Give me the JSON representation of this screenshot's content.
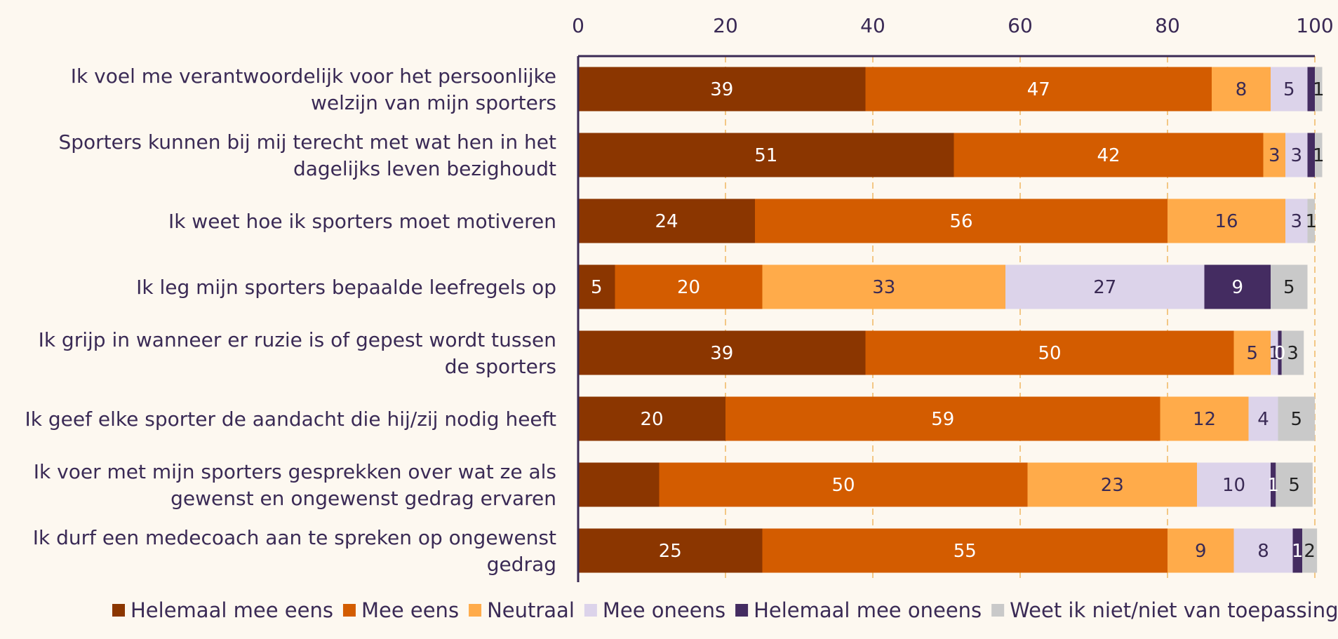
{
  "chart_data": {
    "type": "bar",
    "orientation": "horizontal",
    "stacked": true,
    "title": "",
    "xlabel": "",
    "ylabel": "",
    "xlim": [
      0,
      100
    ],
    "x_ticks": [
      0,
      20,
      40,
      60,
      80,
      100
    ],
    "x_tick_labels": [
      "0",
      "20",
      "40",
      "60",
      "80",
      "100"
    ],
    "x_axis_position": "top",
    "grid": "vertical dashed",
    "legend_position": "bottom",
    "colors": {
      "background": "#fdf8f0",
      "grid": "#f3c785",
      "axis": "#3a2a55",
      "text": "#3a2a55"
    },
    "categories": [
      [
        "Ik voel me verantwoordelijk voor het persoonlijke",
        "welzijn van mijn sporters"
      ],
      [
        "Sporters kunnen bij mij terecht met wat hen in het",
        "dagelijks leven bezighoudt"
      ],
      [
        "Ik weet hoe ik sporters moet motiveren"
      ],
      [
        "Ik leg mijn sporters bepaalde leefregels op"
      ],
      [
        "Ik grijp in wanneer er ruzie is of gepest wordt tussen",
        "de sporters"
      ],
      [
        "Ik geef elke sporter de aandacht die hij/zij nodig heeft"
      ],
      [
        "Ik voer met mijn sporters gesprekken over wat ze als",
        "gewenst en ongewenst gedrag ervaren"
      ],
      [
        "Ik durf een medecoach aan te spreken op ongewenst",
        "gedrag"
      ]
    ],
    "series": [
      {
        "name": "Helemaal mee eens",
        "color": "#8b3600",
        "label_color": "#ffffff",
        "values": [
          39,
          51,
          24,
          5,
          39,
          20,
          11,
          25
        ],
        "labels": [
          "39",
          "51",
          "24",
          "5",
          "39",
          "20",
          "",
          "25"
        ]
      },
      {
        "name": "Mee eens",
        "color": "#d35c00",
        "label_color": "#ffffff",
        "values": [
          47,
          42,
          56,
          20,
          50,
          59,
          50,
          55
        ],
        "labels": [
          "47",
          "42",
          "56",
          "20",
          "50",
          "59",
          "50",
          "55"
        ]
      },
      {
        "name": "Neutraal",
        "color": "#ffab4a",
        "label_color": "#3a2a55",
        "values": [
          8,
          3,
          16,
          33,
          5,
          12,
          23,
          9
        ],
        "labels": [
          "8",
          "3",
          "16",
          "33",
          "5",
          "12",
          "23",
          "9"
        ]
      },
      {
        "name": "Mee oneens",
        "color": "#dcd3ea",
        "label_color": "#3a2a55",
        "values": [
          5,
          3,
          3,
          27,
          1,
          4,
          10,
          8
        ],
        "labels": [
          "5",
          "3",
          "3",
          "27",
          "1",
          "4",
          "10",
          "8"
        ]
      },
      {
        "name": "Helemaal mee oneens",
        "color": "#442c61",
        "label_color": "#ffffff",
        "values": [
          1,
          1,
          0,
          9,
          0.5,
          0,
          0.7,
          1.3
        ],
        "labels": [
          "",
          "",
          "",
          "9",
          "0",
          "",
          "1",
          "1"
        ]
      },
      {
        "name": "Weet ik niet/niet van toepassing",
        "color": "#c9c9c9",
        "label_color": "#222222",
        "values": [
          1,
          1,
          1,
          5,
          3,
          5,
          5,
          2
        ],
        "labels": [
          "1",
          "1",
          "1",
          "5",
          "3",
          "5",
          "5",
          "2"
        ]
      }
    ]
  }
}
